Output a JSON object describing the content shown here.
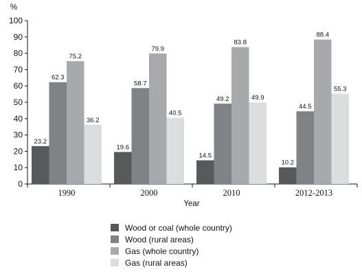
{
  "chart_data": {
    "type": "bar",
    "ylabel": "%",
    "xlabel": "Year",
    "ylim": [
      0,
      100
    ],
    "yticks": [
      0,
      10,
      20,
      30,
      40,
      50,
      60,
      70,
      80,
      90,
      100
    ],
    "categories": [
      "1990",
      "2000",
      "2010",
      "2012-2013"
    ],
    "series": [
      {
        "name": "Wood or coal (whole country)",
        "color": "#58595b",
        "values": [
          23.2,
          19.6,
          14.5,
          10.2
        ]
      },
      {
        "name": "Wood (rural areas)",
        "color": "#808285",
        "values": [
          62.3,
          58.7,
          49.2,
          44.5
        ]
      },
      {
        "name": "Gas (whole country)",
        "color": "#a7a9ac",
        "values": [
          75.2,
          79.9,
          83.8,
          88.4
        ]
      },
      {
        "name": "Gas (rural areas)",
        "color": "#dcdddf",
        "values": [
          36.2,
          40.5,
          49.9,
          55.3
        ]
      }
    ],
    "grid": false,
    "legend_position": "bottom-center"
  }
}
